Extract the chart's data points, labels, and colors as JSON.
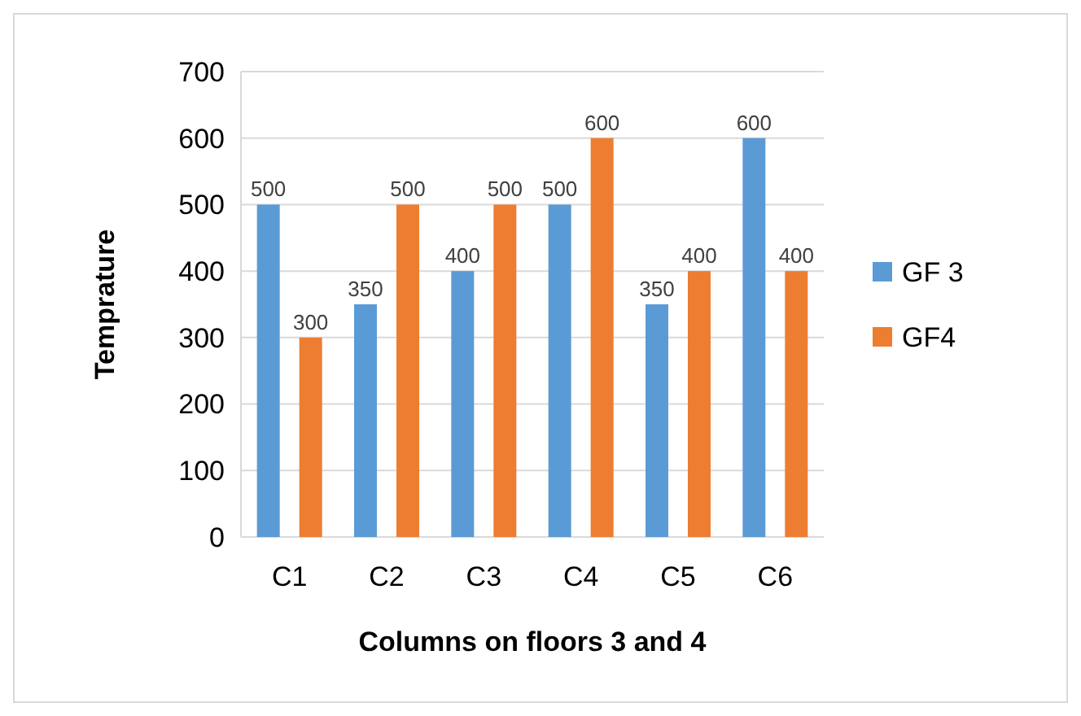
{
  "chart_data": {
    "type": "bar",
    "xlabel": "Columns on floors 3 and 4",
    "ylabel": "Temprature",
    "categories": [
      "C1",
      "C2",
      "C3",
      "C4",
      "C5",
      "C6"
    ],
    "series": [
      {
        "name": "GF 3",
        "color": "#5b9bd5",
        "values": [
          500,
          350,
          400,
          500,
          350,
          600
        ]
      },
      {
        "name": "GF4",
        "color": "#ed7d31",
        "values": [
          300,
          500,
          500,
          600,
          400,
          400
        ]
      }
    ],
    "ylim": [
      0,
      700
    ],
    "yticks": [
      0,
      100,
      200,
      300,
      400,
      500,
      600,
      700
    ],
    "grid": "y",
    "legend": "right",
    "data_labels": true
  }
}
